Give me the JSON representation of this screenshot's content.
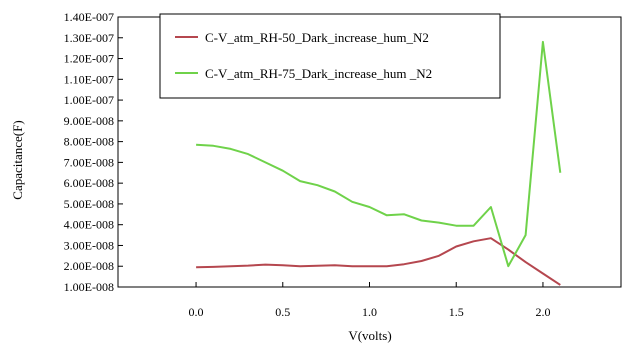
{
  "chart_data": {
    "type": "line",
    "title": "",
    "xlabel": "V(volts)",
    "ylabel": "Capacitance(F)",
    "xlim": [
      -0.45,
      2.45
    ],
    "ylim": [
      1e-08,
      1.4e-07
    ],
    "x_ticks": [
      {
        "value": 0.0,
        "label": "0.0"
      },
      {
        "value": 0.5,
        "label": "0.5"
      },
      {
        "value": 1.0,
        "label": "1.0"
      },
      {
        "value": 1.5,
        "label": "1.5"
      },
      {
        "value": 2.0,
        "label": "2.0"
      }
    ],
    "y_ticks": [
      {
        "value": 1e-08,
        "label": "1.00E-008"
      },
      {
        "value": 2e-08,
        "label": "2.00E-008"
      },
      {
        "value": 3e-08,
        "label": "3.00E-008"
      },
      {
        "value": 4e-08,
        "label": "4.00E-008"
      },
      {
        "value": 5e-08,
        "label": "5.00E-008"
      },
      {
        "value": 6e-08,
        "label": "6.00E-008"
      },
      {
        "value": 7e-08,
        "label": "7.00E-008"
      },
      {
        "value": 8e-08,
        "label": "8.00E-008"
      },
      {
        "value": 9e-08,
        "label": "9.00E-008"
      },
      {
        "value": 1e-07,
        "label": "1.00E-007"
      },
      {
        "value": 1.1e-07,
        "label": "1.10E-007"
      },
      {
        "value": 1.2e-07,
        "label": "1.20E-007"
      },
      {
        "value": 1.3e-07,
        "label": "1.30E-007"
      },
      {
        "value": 1.4e-07,
        "label": "1.40E-007"
      }
    ],
    "legend_position": "top-center",
    "series": [
      {
        "name": "C-V_atm_RH-50_Dark_increase_hum_N2",
        "color": "#b5474f",
        "x": [
          0.0,
          0.1,
          0.2,
          0.3,
          0.4,
          0.5,
          0.6,
          0.7,
          0.8,
          0.9,
          1.0,
          1.1,
          1.2,
          1.3,
          1.4,
          1.5,
          1.6,
          1.7,
          1.8,
          1.9,
          2.0,
          2.1
        ],
        "y": [
          1.95e-08,
          1.97e-08,
          2e-08,
          2.03e-08,
          2.08e-08,
          2.05e-08,
          2e-08,
          2.02e-08,
          2.05e-08,
          2e-08,
          2e-08,
          2e-08,
          2.1e-08,
          2.25e-08,
          2.5e-08,
          2.95e-08,
          3.2e-08,
          3.35e-08,
          2.8e-08,
          2.2e-08,
          1.65e-08,
          1.1e-08
        ]
      },
      {
        "name": "C-V_atm_RH-75_Dark_increase_hum _N2",
        "color": "#6fd24a",
        "x": [
          0.0,
          0.1,
          0.2,
          0.3,
          0.4,
          0.5,
          0.6,
          0.7,
          0.8,
          0.9,
          1.0,
          1.1,
          1.2,
          1.3,
          1.4,
          1.5,
          1.6,
          1.7,
          1.8,
          1.9,
          2.0,
          2.1
        ],
        "y": [
          7.85e-08,
          7.8e-08,
          7.65e-08,
          7.4e-08,
          7e-08,
          6.6e-08,
          6.1e-08,
          5.9e-08,
          5.6e-08,
          5.1e-08,
          4.85e-08,
          4.45e-08,
          4.5e-08,
          4.2e-08,
          4.1e-08,
          3.95e-08,
          3.95e-08,
          4.85e-08,
          2e-08,
          3.5e-08,
          1.28e-07,
          6.5e-08
        ]
      }
    ]
  }
}
